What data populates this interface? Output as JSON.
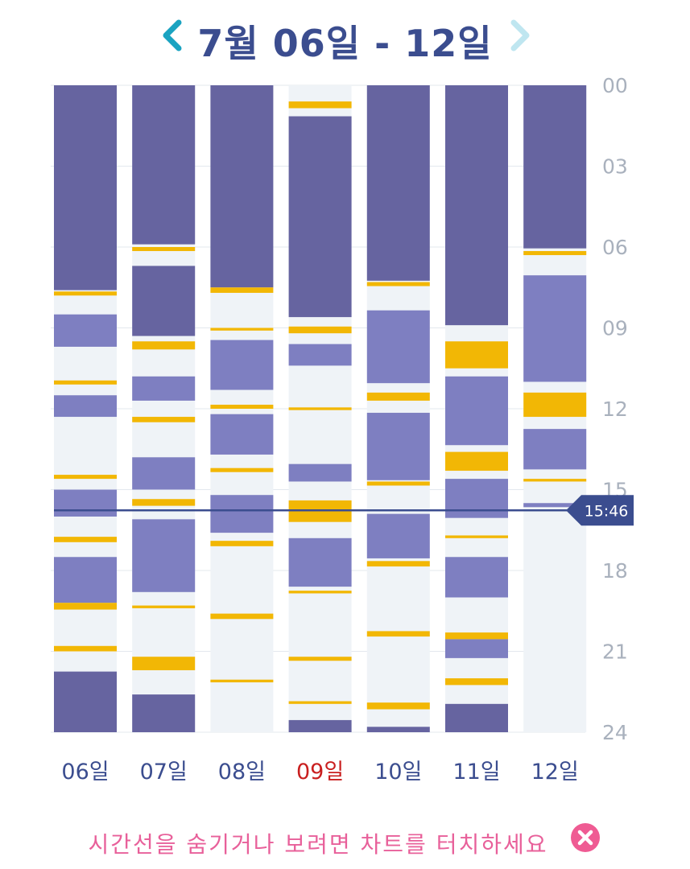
{
  "header": {
    "title": "7월 06일 - 12일",
    "prev_icon": "chevron-left-icon",
    "next_icon": "chevron-right-icon"
  },
  "colors": {
    "sleep": "#6664a0",
    "activity": "#7e7fc1",
    "event": "#f2b705",
    "empty": "#eff3f7",
    "today_label": "#c91f1f",
    "label": "#3b4d8f",
    "axis": "#a9b1bd",
    "now_line": "#3b4d8f",
    "hint": "#e8609a",
    "close": "#ef5b93"
  },
  "chart_data": {
    "type": "timeline",
    "y_unit": "hour of day",
    "y_range": [
      0,
      24
    ],
    "y_ticks": [
      "00",
      "03",
      "06",
      "09",
      "12",
      "15",
      "18",
      "21",
      "24"
    ],
    "now": {
      "label": "15:46",
      "hour": 15.77
    },
    "today_index": 3,
    "days": [
      {
        "label": "06일",
        "blocks": [
          {
            "kind": "sleep",
            "start": 0,
            "end": 7.6
          },
          {
            "kind": "event",
            "start": 7.65,
            "end": 7.8
          },
          {
            "kind": "activity",
            "start": 8.5,
            "end": 9.7
          },
          {
            "kind": "event",
            "start": 10.95,
            "end": 11.1
          },
          {
            "kind": "activity",
            "start": 11.5,
            "end": 12.3
          },
          {
            "kind": "event",
            "start": 14.45,
            "end": 14.6
          },
          {
            "kind": "activity",
            "start": 15.0,
            "end": 16.0
          },
          {
            "kind": "event",
            "start": 16.75,
            "end": 16.95
          },
          {
            "kind": "activity",
            "start": 17.5,
            "end": 19.2
          },
          {
            "kind": "event",
            "start": 19.2,
            "end": 19.45
          },
          {
            "kind": "event",
            "start": 20.8,
            "end": 21.0
          },
          {
            "kind": "sleep",
            "start": 21.75,
            "end": 24
          }
        ]
      },
      {
        "label": "07일",
        "blocks": [
          {
            "kind": "sleep",
            "start": 0,
            "end": 5.9
          },
          {
            "kind": "event",
            "start": 6.0,
            "end": 6.15
          },
          {
            "kind": "sleep",
            "start": 6.7,
            "end": 9.3
          },
          {
            "kind": "event",
            "start": 9.5,
            "end": 9.8
          },
          {
            "kind": "activity",
            "start": 10.8,
            "end": 11.7
          },
          {
            "kind": "event",
            "start": 12.3,
            "end": 12.5
          },
          {
            "kind": "activity",
            "start": 13.8,
            "end": 15.0
          },
          {
            "kind": "event",
            "start": 15.35,
            "end": 15.6
          },
          {
            "kind": "activity",
            "start": 16.1,
            "end": 18.8
          },
          {
            "kind": "event",
            "start": 19.3,
            "end": 19.4
          },
          {
            "kind": "event",
            "start": 21.2,
            "end": 21.7
          },
          {
            "kind": "sleep",
            "start": 22.6,
            "end": 24
          }
        ]
      },
      {
        "label": "08일",
        "blocks": [
          {
            "kind": "sleep",
            "start": 0,
            "end": 7.5
          },
          {
            "kind": "event",
            "start": 7.5,
            "end": 7.7
          },
          {
            "kind": "event",
            "start": 9.0,
            "end": 9.1
          },
          {
            "kind": "activity",
            "start": 9.45,
            "end": 11.3
          },
          {
            "kind": "event",
            "start": 11.85,
            "end": 12.0
          },
          {
            "kind": "activity",
            "start": 12.2,
            "end": 13.7
          },
          {
            "kind": "event",
            "start": 14.2,
            "end": 14.35
          },
          {
            "kind": "activity",
            "start": 15.2,
            "end": 16.6
          },
          {
            "kind": "event",
            "start": 16.9,
            "end": 17.1
          },
          {
            "kind": "event",
            "start": 19.6,
            "end": 19.8
          },
          {
            "kind": "event",
            "start": 22.05,
            "end": 22.15
          }
        ]
      },
      {
        "label": "09일",
        "blocks": [
          {
            "kind": "event",
            "start": 0.6,
            "end": 0.85
          },
          {
            "kind": "sleep",
            "start": 1.15,
            "end": 8.6
          },
          {
            "kind": "event",
            "start": 8.95,
            "end": 9.2
          },
          {
            "kind": "activity",
            "start": 9.6,
            "end": 10.4
          },
          {
            "kind": "event",
            "start": 11.95,
            "end": 12.05
          },
          {
            "kind": "activity",
            "start": 14.05,
            "end": 14.7
          },
          {
            "kind": "event",
            "start": 15.4,
            "end": 16.2
          },
          {
            "kind": "activity",
            "start": 16.8,
            "end": 18.6
          },
          {
            "kind": "event",
            "start": 18.75,
            "end": 18.85
          },
          {
            "kind": "event",
            "start": 21.2,
            "end": 21.35
          },
          {
            "kind": "event",
            "start": 22.85,
            "end": 22.95
          },
          {
            "kind": "sleep",
            "start": 23.55,
            "end": 24
          }
        ]
      },
      {
        "label": "10일",
        "blocks": [
          {
            "kind": "sleep",
            "start": 0,
            "end": 7.25
          },
          {
            "kind": "event",
            "start": 7.3,
            "end": 7.45
          },
          {
            "kind": "activity",
            "start": 8.35,
            "end": 11.05
          },
          {
            "kind": "event",
            "start": 11.4,
            "end": 11.7
          },
          {
            "kind": "activity",
            "start": 12.15,
            "end": 14.65
          },
          {
            "kind": "event",
            "start": 14.7,
            "end": 14.85
          },
          {
            "kind": "activity",
            "start": 15.9,
            "end": 17.55
          },
          {
            "kind": "event",
            "start": 17.65,
            "end": 17.85
          },
          {
            "kind": "event",
            "start": 20.25,
            "end": 20.45
          },
          {
            "kind": "event",
            "start": 22.9,
            "end": 23.15
          },
          {
            "kind": "sleep",
            "start": 23.8,
            "end": 24
          }
        ]
      },
      {
        "label": "11일",
        "blocks": [
          {
            "kind": "sleep",
            "start": 0,
            "end": 8.9
          },
          {
            "kind": "event",
            "start": 9.5,
            "end": 10.5
          },
          {
            "kind": "activity",
            "start": 10.8,
            "end": 13.35
          },
          {
            "kind": "event",
            "start": 13.6,
            "end": 14.3
          },
          {
            "kind": "activity",
            "start": 14.6,
            "end": 16.05
          },
          {
            "kind": "event",
            "start": 16.7,
            "end": 16.8
          },
          {
            "kind": "activity",
            "start": 17.5,
            "end": 19.0
          },
          {
            "kind": "event",
            "start": 20.3,
            "end": 20.55
          },
          {
            "kind": "activity",
            "start": 20.55,
            "end": 21.25
          },
          {
            "kind": "event",
            "start": 22.0,
            "end": 22.25
          },
          {
            "kind": "sleep",
            "start": 22.95,
            "end": 24
          }
        ]
      },
      {
        "label": "12일",
        "blocks": [
          {
            "kind": "sleep",
            "start": 0,
            "end": 6.05
          },
          {
            "kind": "event",
            "start": 6.15,
            "end": 6.3
          },
          {
            "kind": "activity",
            "start": 7.05,
            "end": 11.0
          },
          {
            "kind": "event",
            "start": 11.4,
            "end": 12.3
          },
          {
            "kind": "activity",
            "start": 12.75,
            "end": 14.25
          },
          {
            "kind": "event",
            "start": 14.6,
            "end": 14.7
          },
          {
            "kind": "activity",
            "start": 15.5,
            "end": 15.65
          }
        ]
      }
    ]
  },
  "hint": {
    "text": "시간선을 숨기거나 보려면 차트를 터치하세요",
    "close_icon": "close-icon"
  }
}
